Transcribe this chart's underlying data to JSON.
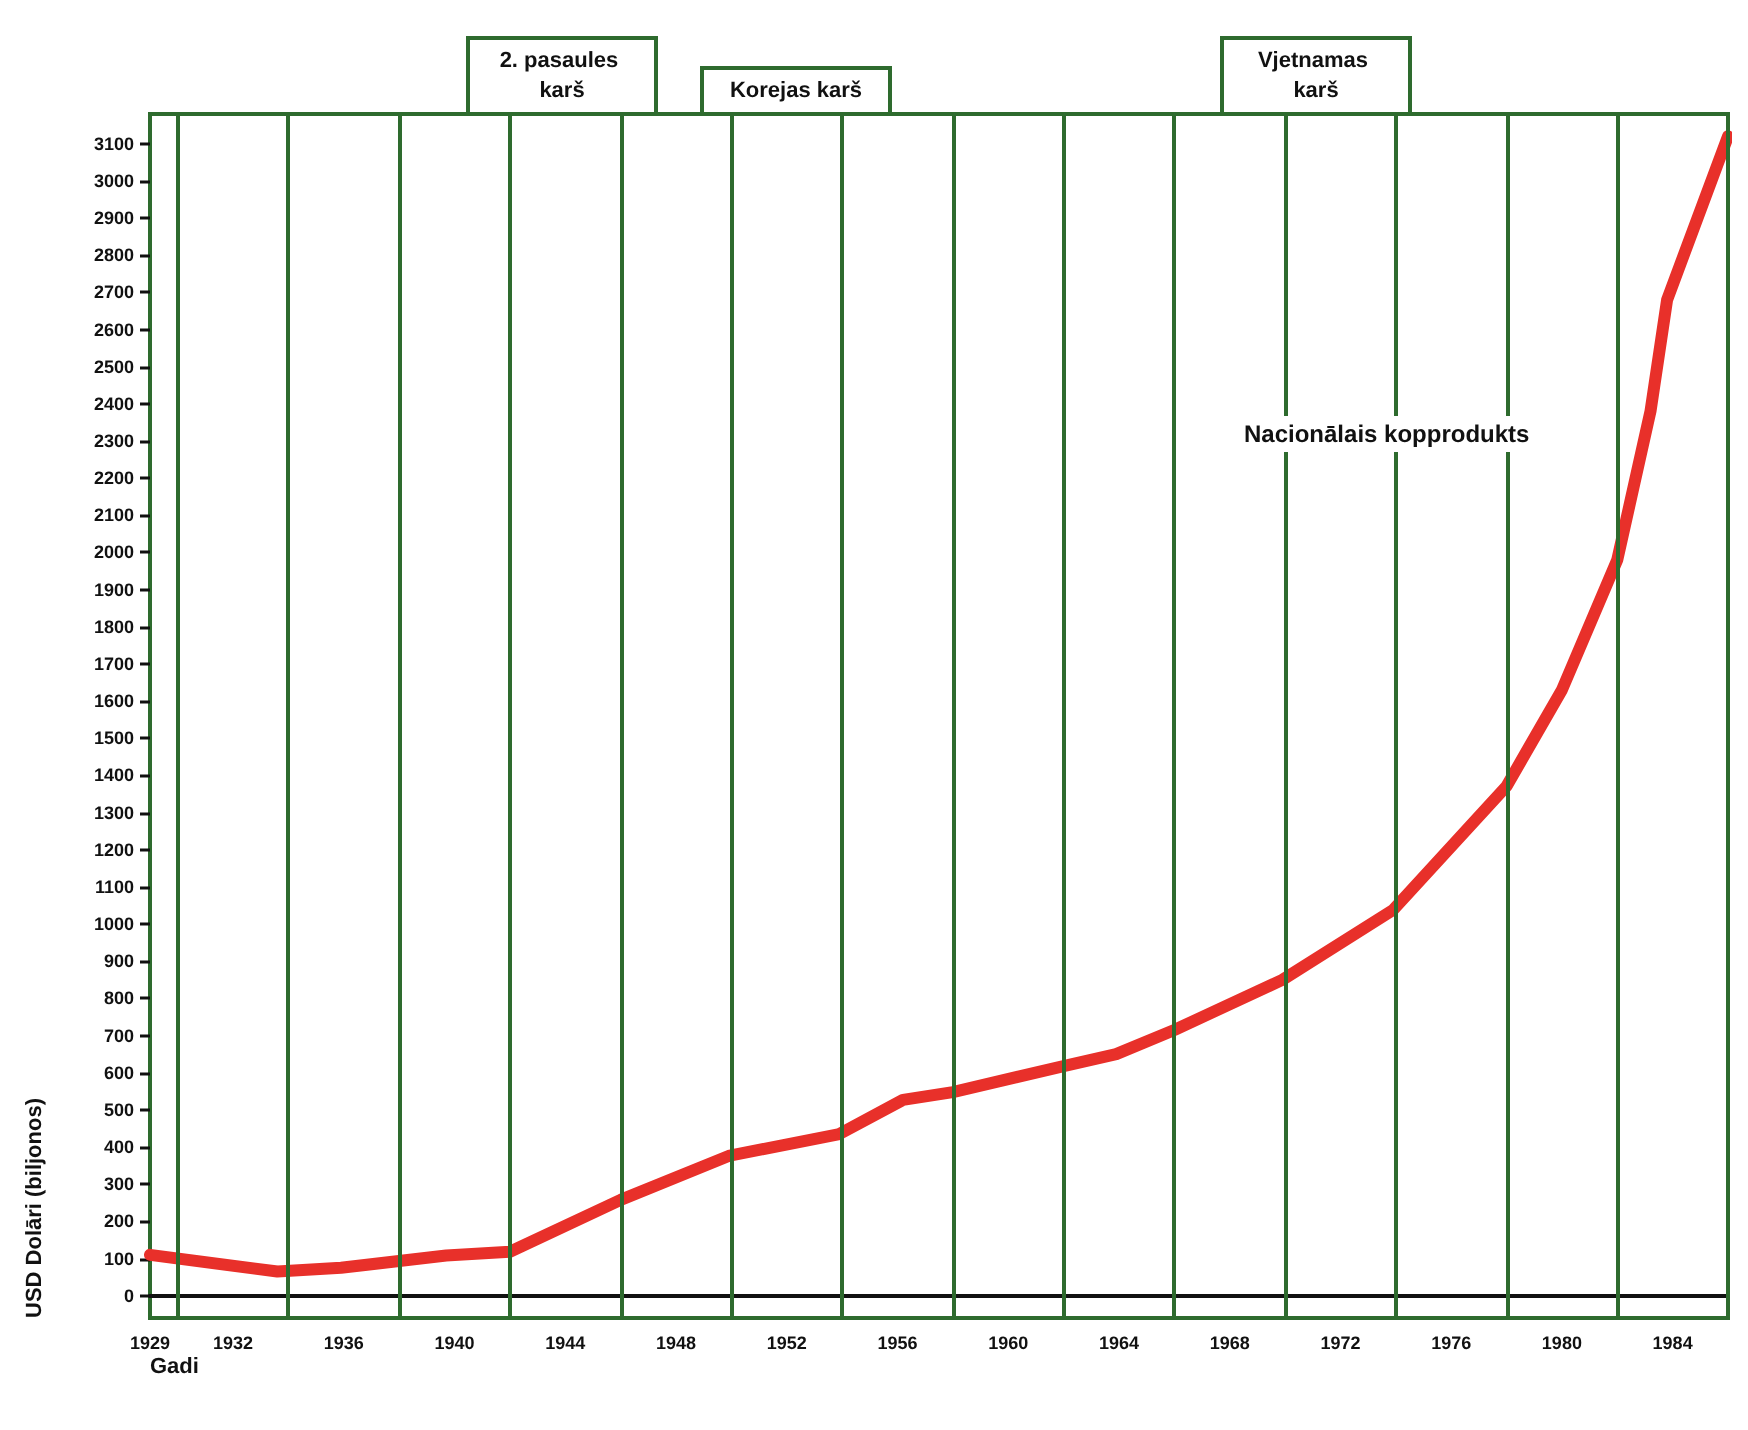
{
  "chart_data": {
    "type": "line",
    "xlabel": "Gadi",
    "ylabel": "USD Dolāri (biljonos)",
    "x": [
      1929,
      1933.6,
      1935.9,
      1939.7,
      1942,
      1946,
      1949.9,
      1953.9,
      1956.2,
      1958,
      1962,
      1963.9,
      1966,
      1969.9,
      1973.9,
      1978,
      1980,
      1982,
      1983.2,
      1983.8,
      1986
    ],
    "series": [
      {
        "name": "Nacionālais kopprodukts",
        "color": "#e8302a",
        "values": [
          110,
          65,
          75,
          108,
          118,
          258,
          376,
          435,
          527,
          548,
          618,
          650,
          715,
          850,
          1038,
          1371,
          1630,
          1980,
          2380,
          2680,
          3120
        ]
      }
    ],
    "xlim": [
      1929,
      1986
    ],
    "xticks": [
      1929,
      {
        "value": 1930,
        "label": null
      },
      1932,
      {
        "value": 1934,
        "label": null
      },
      1936,
      {
        "value": 1938,
        "label": null
      },
      1940,
      {
        "value": 1942,
        "label": null
      },
      1944,
      {
        "value": 1946,
        "label": null
      },
      1948,
      {
        "value": 1950,
        "label": null
      },
      1952,
      {
        "value": 1954,
        "label": null
      },
      1956,
      {
        "value": 1958,
        "label": null
      },
      1960,
      {
        "value": 1962,
        "label": null
      },
      1964,
      {
        "value": 1966,
        "label": null
      },
      1968,
      {
        "value": 1970,
        "label": null
      },
      1972,
      {
        "value": 1974,
        "label": null
      },
      1976,
      {
        "value": 1978,
        "label": null
      },
      1980,
      {
        "value": 1982,
        "label": null
      },
      1984,
      {
        "value": 1986,
        "label": null
      }
    ],
    "ylim": [
      -60,
      3180
    ],
    "yticks": [
      0,
      100,
      200,
      300,
      400,
      500,
      600,
      700,
      800,
      900,
      1000,
      1100,
      1200,
      1300,
      1400,
      1500,
      1600,
      1700,
      1800,
      1900,
      2000,
      2100,
      2200,
      2300,
      2400,
      2500,
      2600,
      2700,
      2800,
      2900,
      3000,
      3100
    ],
    "annotations": [
      "2. pasaules karš",
      "Korejas karš",
      "Vjetnamas karš"
    ],
    "grid": "x",
    "legend": false,
    "marker": "none",
    "line_style": "solid"
  }
}
